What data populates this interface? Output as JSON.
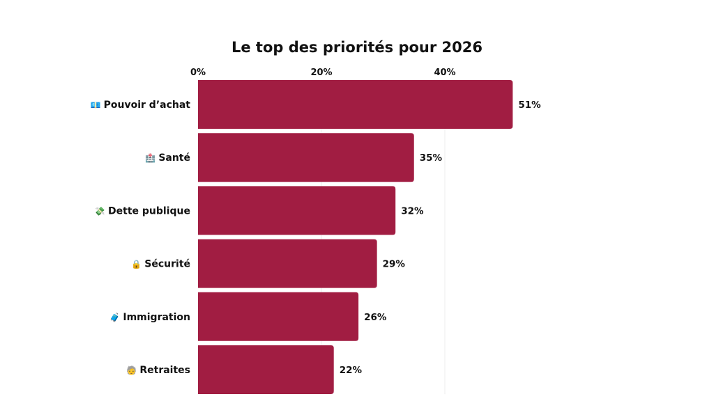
{
  "chart_data": {
    "type": "bar",
    "orientation": "horizontal",
    "title": "Le top des priorités pour 2026",
    "xlabel": "",
    "ylabel": "",
    "xlim": [
      0,
      60
    ],
    "x_ticks": [
      0,
      20,
      40
    ],
    "x_tick_labels": [
      "0%",
      "20%",
      "40%"
    ],
    "x_axis_position": "top",
    "grid": true,
    "categories": [
      {
        "icon": "money-bills-icon",
        "emoji": "💶",
        "label": "Pouvoir d’achat"
      },
      {
        "icon": "hospital-icon",
        "emoji": "🏥",
        "label": "Santé"
      },
      {
        "icon": "money-wings-icon",
        "emoji": "💸",
        "label": "Dette publique"
      },
      {
        "icon": "lock-icon",
        "emoji": "🔒",
        "label": "Sécurité"
      },
      {
        "icon": "luggage-icon",
        "emoji": "🧳",
        "label": "Immigration"
      },
      {
        "icon": "older-person-icon",
        "emoji": "🧓",
        "label": "Retraites"
      }
    ],
    "values": [
      51,
      35,
      32,
      29,
      26,
      22
    ],
    "value_labels": [
      "51%",
      "35%",
      "32%",
      "29%",
      "26%",
      "22%"
    ],
    "bar_color": "#A11D42",
    "legend": "none"
  }
}
